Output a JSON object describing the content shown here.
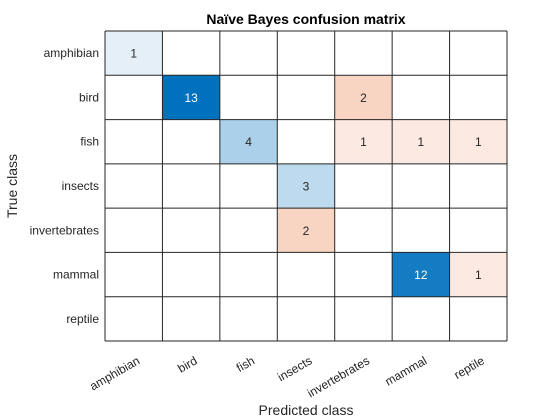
{
  "chart_data": {
    "type": "heatmap",
    "title": "Naïve Bayes confusion matrix",
    "xlabel": "Predicted class",
    "ylabel": "True class",
    "classes": [
      "amphibian",
      "bird",
      "fish",
      "insects",
      "invertebrates",
      "mammal",
      "reptile"
    ],
    "matrix": [
      [
        1,
        0,
        0,
        0,
        0,
        0,
        0
      ],
      [
        0,
        13,
        0,
        0,
        2,
        0,
        0
      ],
      [
        0,
        0,
        4,
        0,
        1,
        1,
        1
      ],
      [
        0,
        0,
        0,
        3,
        0,
        0,
        0
      ],
      [
        0,
        0,
        0,
        2,
        0,
        0,
        0
      ],
      [
        0,
        0,
        0,
        0,
        0,
        12,
        1
      ],
      [
        0,
        0,
        0,
        0,
        0,
        0,
        0
      ]
    ],
    "colors": {
      "correct_dark": "#0072bd",
      "correct_light": "#e4eff8",
      "error_dark": "#f8d4c3",
      "error_light": "#fce9e1",
      "grid": "#262626",
      "text_dark": "#262626",
      "text_light": "#ffffff"
    }
  }
}
